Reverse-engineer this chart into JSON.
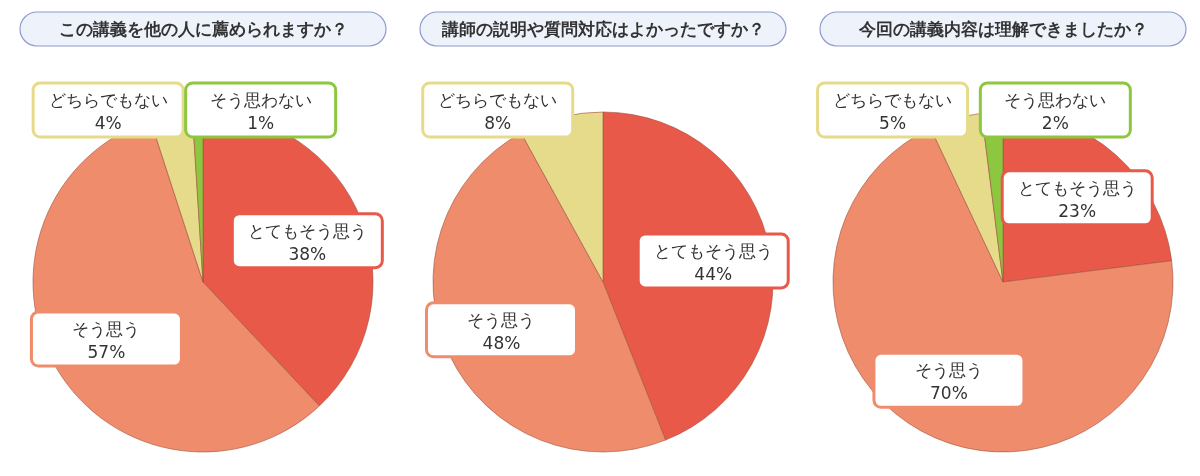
{
  "chart_data": [
    {
      "type": "pie",
      "title": "この講義を他の人に薦められますか？",
      "categories": [
        "とてもそう思う",
        "そう思う",
        "どちらでもない",
        "そう思わない"
      ],
      "values": [
        38,
        57,
        4,
        1
      ],
      "value_labels": [
        "38%",
        "57%",
        "4%",
        "1%"
      ],
      "colors": [
        "#e8594a",
        "#ef8c6c",
        "#e6db8a",
        "#8dc63f"
      ]
    },
    {
      "type": "pie",
      "title": "講師の説明や質問対応はよかったですか？",
      "categories": [
        "とてもそう思う",
        "そう思う",
        "どちらでもない"
      ],
      "values": [
        44,
        48,
        8
      ],
      "value_labels": [
        "44%",
        "48%",
        "8%"
      ],
      "colors": [
        "#e8594a",
        "#ef8c6c",
        "#e6db8a"
      ]
    },
    {
      "type": "pie",
      "title": "今回の講義内容は理解できましたか？",
      "categories": [
        "とてもそう思う",
        "そう思う",
        "どちらでもない",
        "そう思わない"
      ],
      "values": [
        23,
        70,
        5,
        2
      ],
      "value_labels": [
        "23%",
        "70%",
        "5%",
        "2%"
      ],
      "colors": [
        "#e8594a",
        "#ef8c6c",
        "#e6db8a",
        "#8dc63f"
      ]
    }
  ]
}
